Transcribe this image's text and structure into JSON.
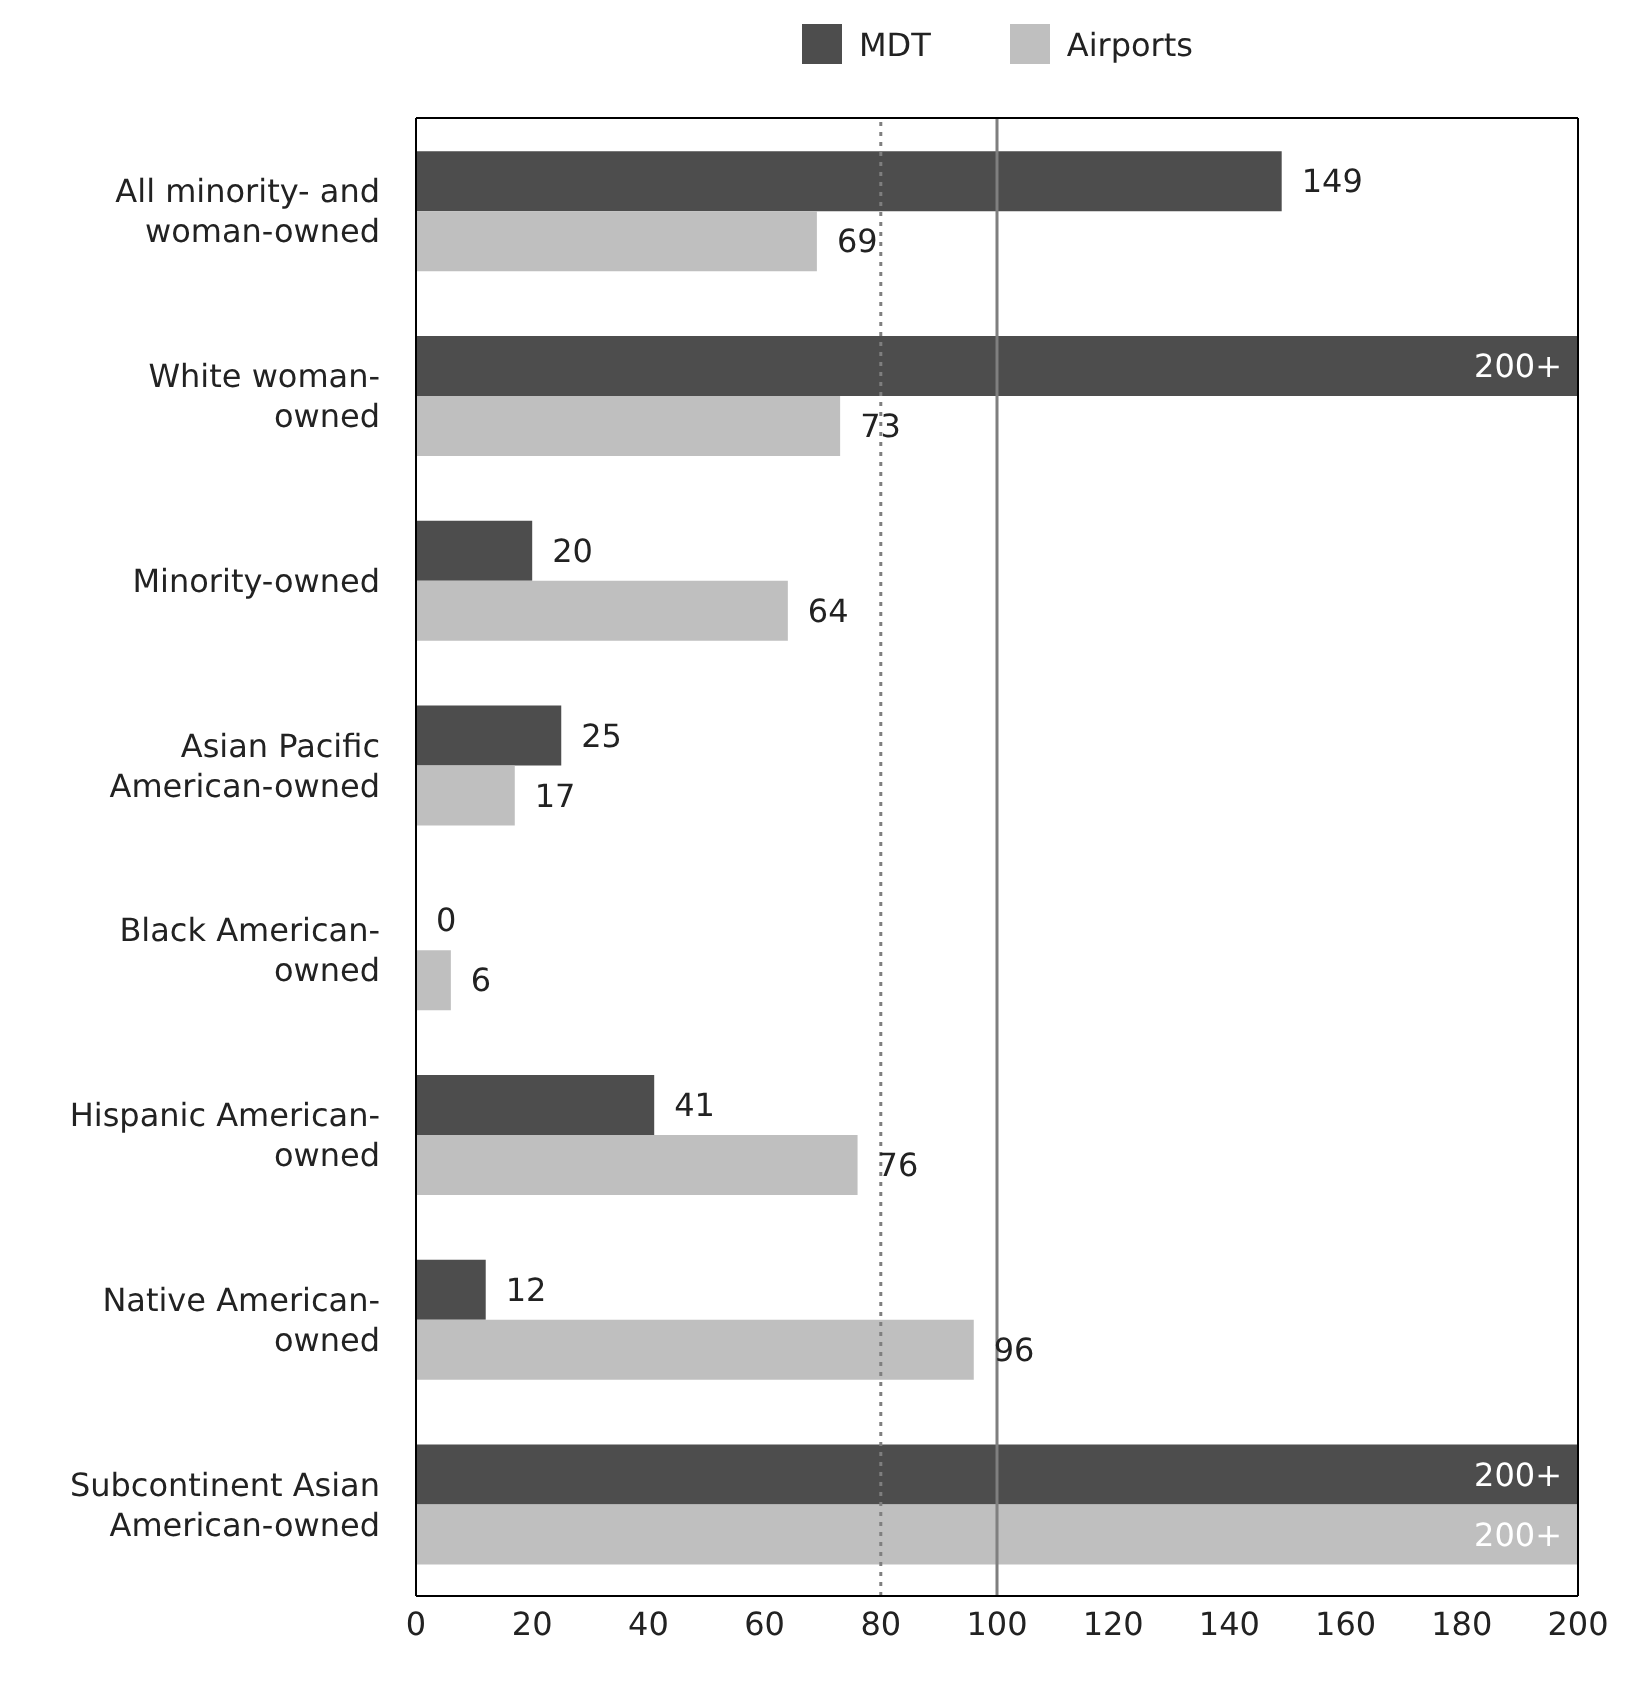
{
  "chart_data": {
    "type": "bar",
    "orientation": "horizontal",
    "categories": [
      "All minority- and woman-owned",
      "White woman-owned",
      "Minority-owned",
      "Asian Pacific American-owned",
      "Black American-owned",
      "Hispanic American-owned",
      "Native American-owned",
      "Subcontinent Asian American-owned"
    ],
    "series": [
      {
        "name": "MDT",
        "color": "#4d4d4d",
        "values": [
          149,
          200,
          20,
          25,
          0,
          41,
          12,
          200
        ],
        "value_labels": [
          "149",
          "200+",
          "20",
          "25",
          "0",
          "41",
          "12",
          "200+"
        ]
      },
      {
        "name": "Airports",
        "color": "#bfbfbf",
        "values": [
          69,
          73,
          64,
          17,
          6,
          76,
          96,
          200
        ],
        "value_labels": [
          "69",
          "73",
          "64",
          "17",
          "6",
          "76",
          "96",
          "200+"
        ]
      }
    ],
    "xlim": [
      0,
      200
    ],
    "xticks": [
      0,
      20,
      40,
      60,
      80,
      100,
      120,
      140,
      160,
      180,
      200
    ],
    "grid": false,
    "legend": "top",
    "ref_lines": [
      {
        "axis": "x",
        "value": 80,
        "color": "#7f7f7f",
        "line_style": "dotted"
      },
      {
        "axis": "x",
        "value": 100,
        "color": "#7f7f7f",
        "line_style": "solid"
      }
    ]
  }
}
